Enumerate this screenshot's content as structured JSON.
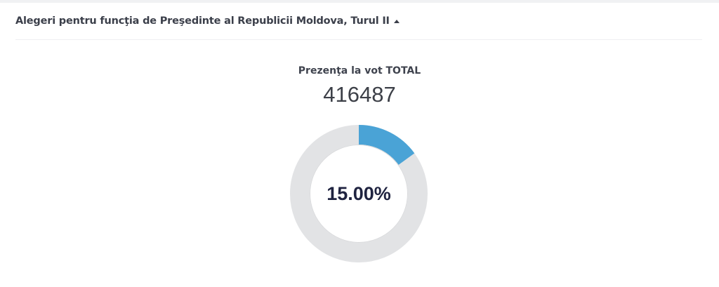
{
  "header": {
    "title": "Alegeri pentru funcţia de Preşedinte al Republicii Moldova, Turul II"
  },
  "turnout": {
    "label": "Prezenţa la vot TOTAL",
    "total": "416487",
    "percent_label": "15.00%",
    "percent_value": 15.0
  },
  "colors": {
    "progress": "#4aa3d6",
    "track": "#e2e3e5",
    "inner_ring": "#d9dadc"
  }
}
